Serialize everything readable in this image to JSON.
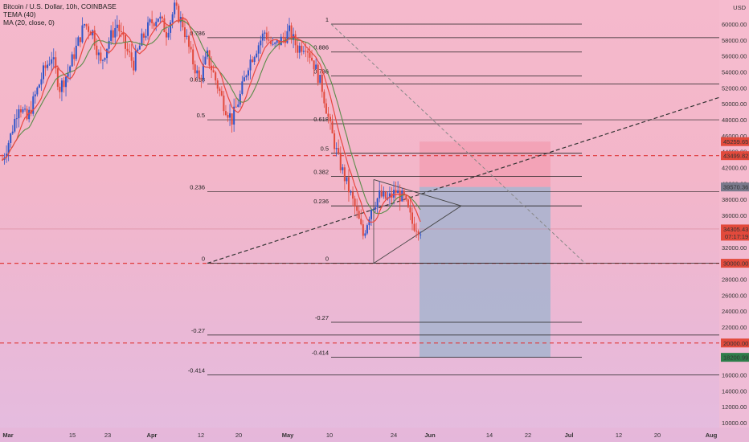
{
  "legend": {
    "title": "Bitcoin / U.S. Dollar, 10h, COINBASE",
    "ind1": "TEMA (40)",
    "ind2": "MA (20, close, 0)"
  },
  "currency": "USD",
  "colors": {
    "bull": "#2f55c9",
    "bear": "#e24a3c",
    "tema": "#e8483f",
    "ma": "#5b8c4a",
    "hline": "#e03a3a",
    "fib": "#222222",
    "sell_zone": "#f2a0b4",
    "buy_zone": "#a7b4cf"
  },
  "chart_data": {
    "type": "candlestick",
    "y_axis": {
      "min": 9000,
      "max": 62000,
      "ticks": [
        10000,
        12000,
        14000,
        16000,
        18000,
        20000,
        22000,
        24000,
        26000,
        28000,
        30000,
        32000,
        34000,
        36000,
        38000,
        40000,
        42000,
        44000,
        46000,
        48000,
        50000,
        52000,
        54000,
        56000,
        58000,
        60000
      ],
      "tick_labels": [
        "10000.00",
        "12000.00",
        "14000.00",
        "16000.00",
        "18000.00",
        "20000.00",
        "22000.00",
        "24000.00",
        "26000.00",
        "28000.00",
        "30000.00",
        "32000.00",
        "34000.00",
        "36000.00",
        "38000.00",
        "40000.00",
        "42000.00",
        "44000.00",
        "46000.00",
        "48000.00",
        "50000.00",
        "52000.00",
        "54000.00",
        "56000.00",
        "58000.00",
        "60000.00"
      ]
    },
    "x_axis": {
      "labels": [
        "Mar",
        "15",
        "23",
        "Apr",
        "12",
        "20",
        "May",
        "10",
        "24",
        "Jun",
        "14",
        "22",
        "Jul",
        "12",
        "20",
        "Aug"
      ],
      "bold": [
        "Mar",
        "Apr",
        "May",
        "Jun",
        "Jul",
        "Aug"
      ]
    },
    "price_path": [
      [
        0,
        43000
      ],
      [
        4,
        46000
      ],
      [
        8,
        50000
      ],
      [
        12,
        48000
      ],
      [
        16,
        51000
      ],
      [
        20,
        54000
      ],
      [
        24,
        56000
      ],
      [
        28,
        52000
      ],
      [
        32,
        54000
      ],
      [
        36,
        57000
      ],
      [
        40,
        60000
      ],
      [
        44,
        59000
      ],
      [
        48,
        55000
      ],
      [
        52,
        58000
      ],
      [
        56,
        60000
      ],
      [
        60,
        57000
      ],
      [
        64,
        55000
      ],
      [
        68,
        58000
      ],
      [
        72,
        60000
      ],
      [
        76,
        61000
      ],
      [
        80,
        59000
      ],
      [
        84,
        62000
      ],
      [
        88,
        60000
      ],
      [
        92,
        56000
      ],
      [
        96,
        53000
      ],
      [
        100,
        56000
      ],
      [
        104,
        53000
      ],
      [
        108,
        50000
      ],
      [
        112,
        48000
      ],
      [
        116,
        51000
      ],
      [
        120,
        55000
      ],
      [
        124,
        57000
      ],
      [
        128,
        59000
      ],
      [
        132,
        57000
      ],
      [
        136,
        58000
      ],
      [
        140,
        59000
      ],
      [
        144,
        57000
      ],
      [
        148,
        57500
      ],
      [
        152,
        55000
      ],
      [
        156,
        52000
      ],
      [
        160,
        47000
      ],
      [
        164,
        43000
      ],
      [
        168,
        40000
      ],
      [
        172,
        37000
      ],
      [
        176,
        33500
      ],
      [
        180,
        37000
      ],
      [
        184,
        38500
      ],
      [
        188,
        38000
      ],
      [
        192,
        39000
      ],
      [
        196,
        38000
      ],
      [
        200,
        35000
      ],
      [
        204,
        34300
      ]
    ],
    "horizontal_levels": [
      {
        "price": 43500,
        "label": "43499.82",
        "style": "dashed-red"
      },
      {
        "price": 30000,
        "label": "30000.00",
        "style": "dashed-red"
      },
      {
        "price": 20000,
        "label": "20000.00",
        "style": "dashed-red"
      }
    ],
    "price_tags": [
      {
        "price": 45260,
        "label": "45259.65",
        "color": "#e24a3c"
      },
      {
        "price": 43500,
        "label": "43499.82",
        "color": "#e24a3c"
      },
      {
        "price": 39570,
        "label": "39570.36",
        "color": "#7a7a8c"
      },
      {
        "price": 34305,
        "label": "34305.43",
        "sub": "07:17:19",
        "color": "#e24a3c"
      },
      {
        "price": 30000,
        "label": "30000.00",
        "color": "#e24a3c"
      },
      {
        "price": 20000,
        "label": "20000.00",
        "color": "#e24a3c"
      },
      {
        "price": 18201,
        "label": "18200.99",
        "color": "#2e7d4a"
      }
    ],
    "fib_left": [
      {
        "label": "0.786",
        "price": 58300
      },
      {
        "label": "0.618",
        "price": 52500
      },
      {
        "label": "0.5",
        "price": 48000
      },
      {
        "label": "0.236",
        "price": 39000
      },
      {
        "label": "0",
        "price": 30000
      },
      {
        "label": "-0.27",
        "price": 21000
      },
      {
        "label": "-0.414",
        "price": 16000
      }
    ],
    "fib_right": [
      {
        "label": "1",
        "price": 60000
      },
      {
        "label": "0.886",
        "price": 56500
      },
      {
        "label": "0.786",
        "price": 53500
      },
      {
        "label": "0.618",
        "price": 47500
      },
      {
        "label": "0.5",
        "price": 43800
      },
      {
        "label": "0.382",
        "price": 40900
      },
      {
        "label": "0.236",
        "price": 37200
      },
      {
        "label": "0",
        "price": 30000
      },
      {
        "label": "-0.27",
        "price": 22600
      },
      {
        "label": "-0.414",
        "price": 18200
      }
    ],
    "position": {
      "entry": 39570,
      "stop": 45260,
      "target": 18200
    }
  }
}
